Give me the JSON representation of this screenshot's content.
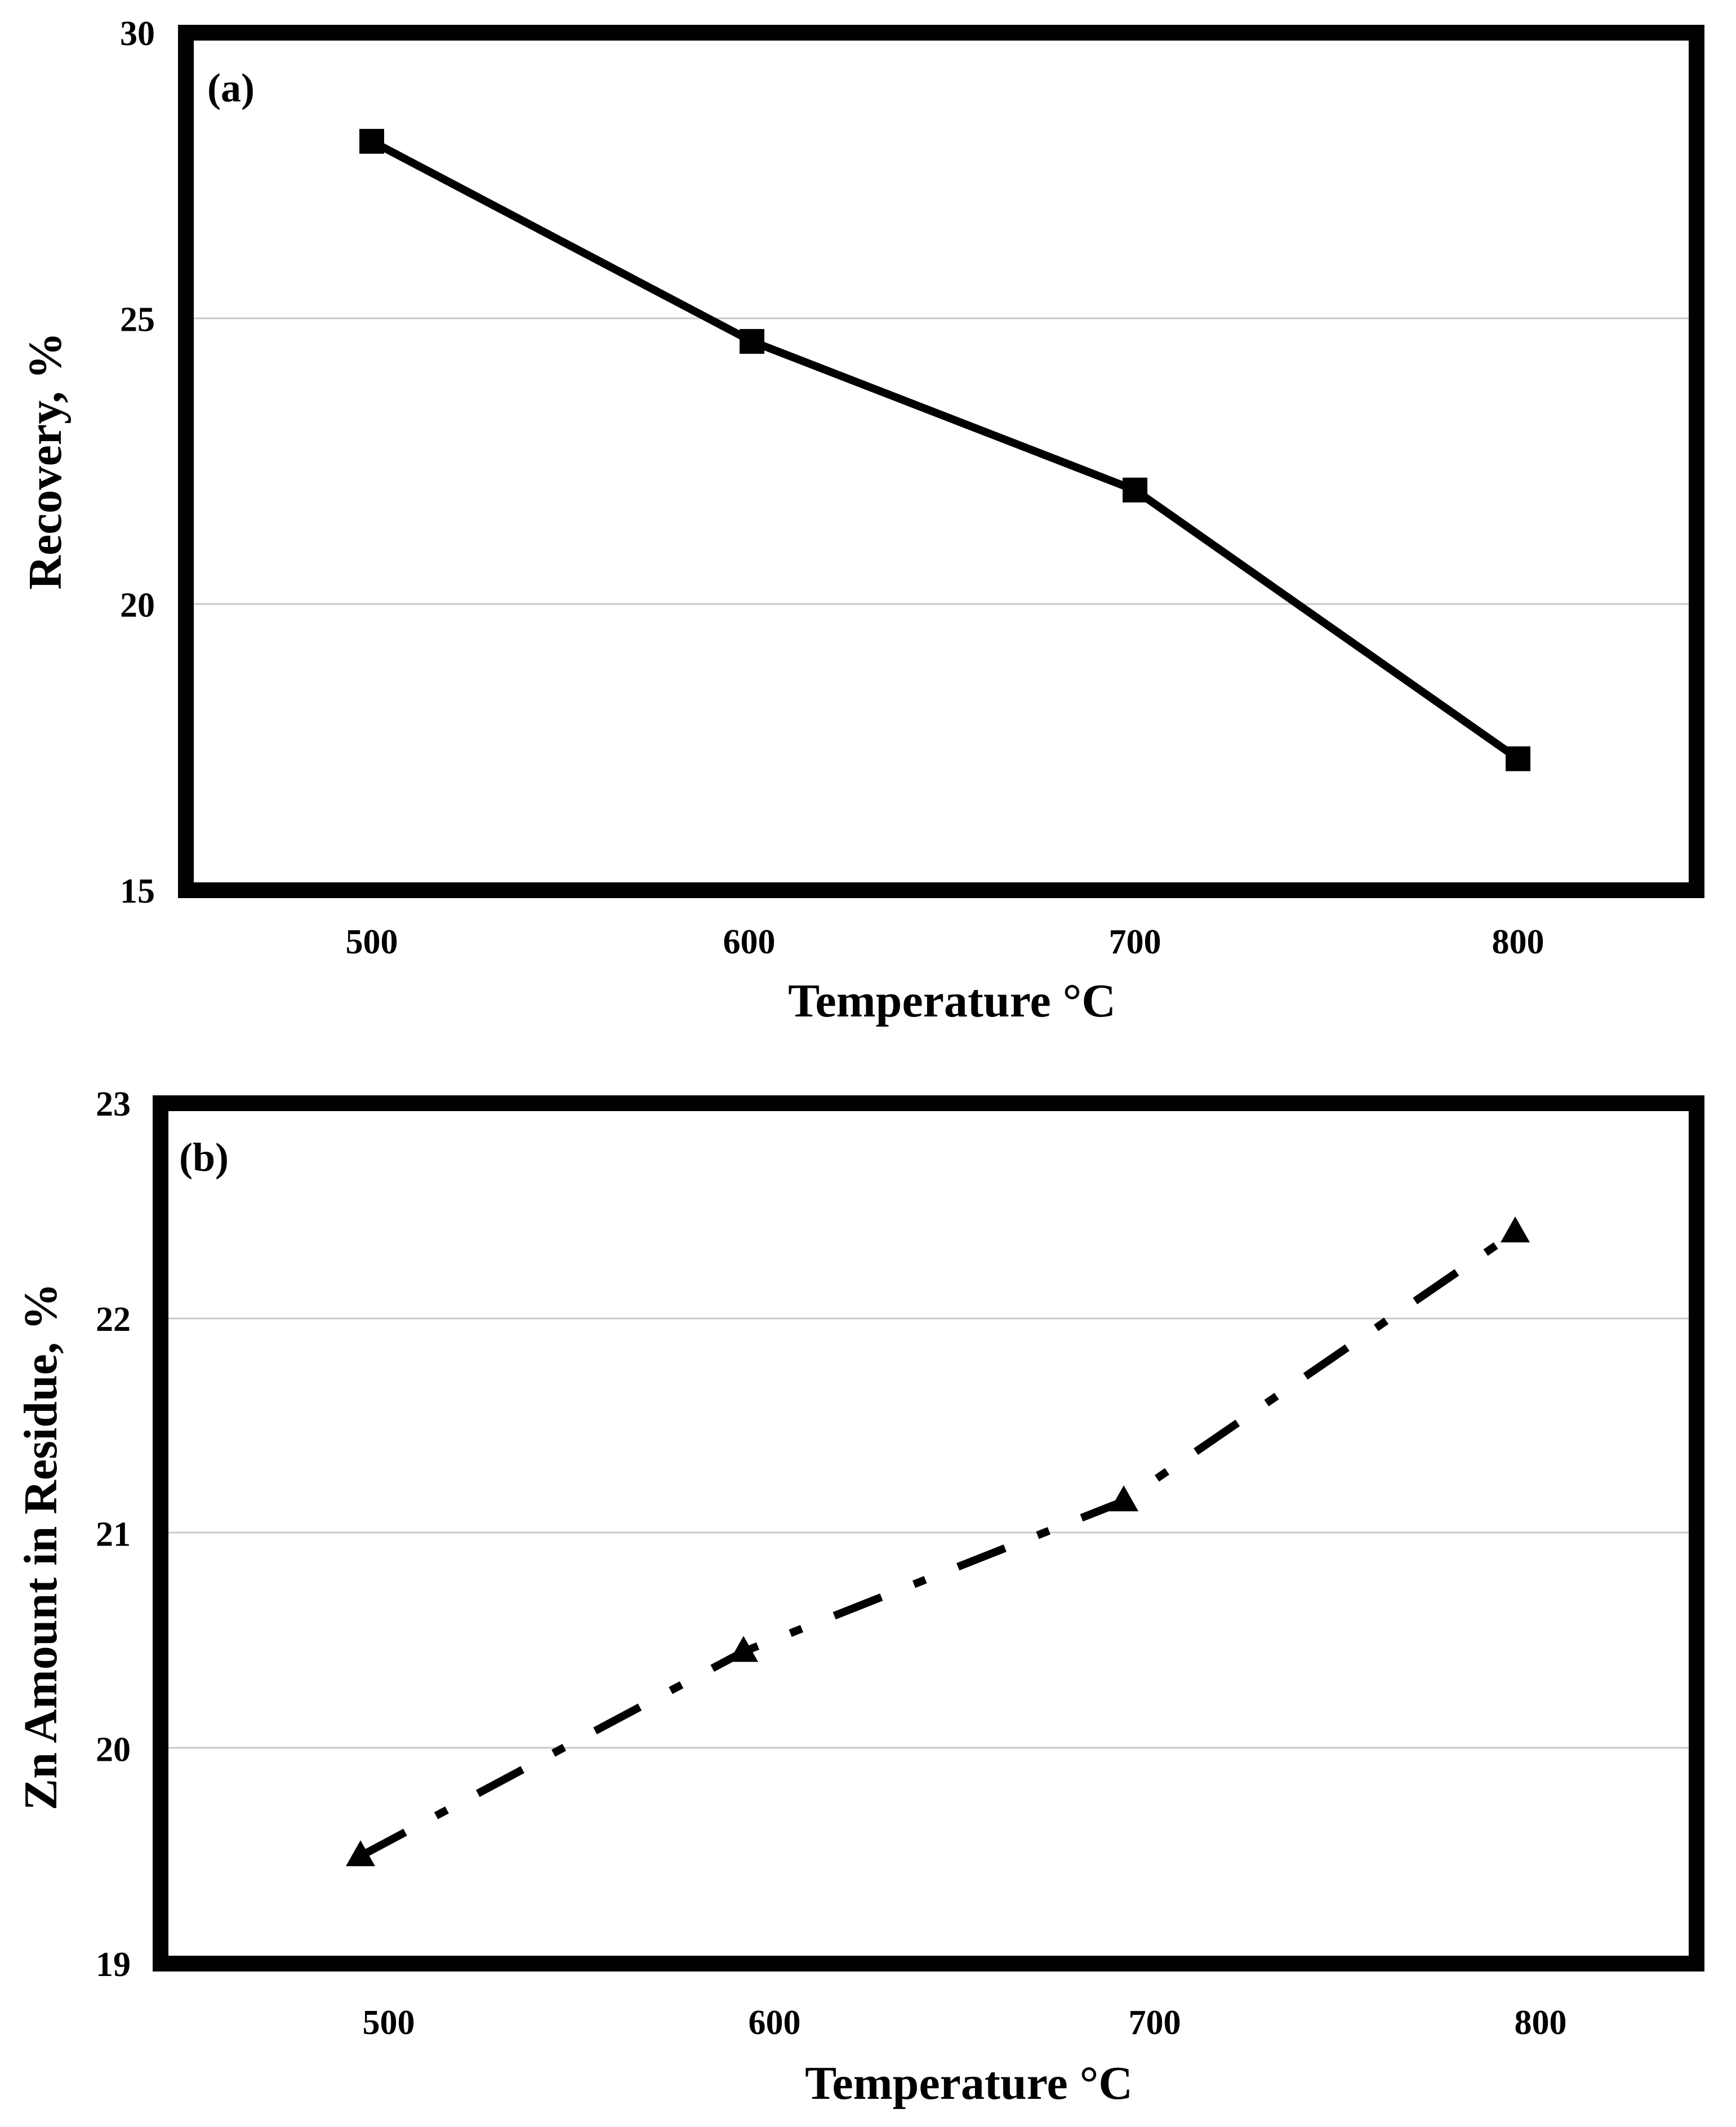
{
  "chart_data": [
    {
      "type": "line",
      "panel_label": "(a)",
      "x": [
        500,
        600,
        700,
        800
      ],
      "x_tick_labels": [
        "500",
        "600",
        "700",
        "800"
      ],
      "xlabel": "Temperature °C",
      "ylabel": "Recovery, %",
      "ylim": [
        15,
        30
      ],
      "y_ticks": [
        15,
        20,
        25,
        30
      ],
      "y_tick_labels": [
        "15",
        "20",
        "25",
        "30"
      ],
      "grid": true,
      "series": [
        {
          "name": "Recovery",
          "values": [
            28.1,
            24.6,
            22.0,
            17.3
          ],
          "marker": "square",
          "line_style": "solid",
          "color": "#000000"
        }
      ]
    },
    {
      "type": "line",
      "panel_label": "(b)",
      "x": [
        500,
        600,
        700,
        800
      ],
      "x_tick_labels": [
        "500",
        "600",
        "700",
        "800"
      ],
      "xlabel": "Temperature °C",
      "ylabel": "Zn Amount in Residue, %",
      "ylim": [
        19,
        23
      ],
      "y_ticks": [
        19,
        20,
        21,
        22,
        23
      ],
      "y_tick_labels": [
        "19",
        "20",
        "21",
        "22",
        "23"
      ],
      "grid": true,
      "series": [
        {
          "name": "Zn Amount in Residue",
          "values": [
            19.5,
            20.45,
            21.15,
            22.4
          ],
          "marker": "triangle",
          "line_style": "dash-dot",
          "color": "#000000"
        }
      ]
    }
  ]
}
